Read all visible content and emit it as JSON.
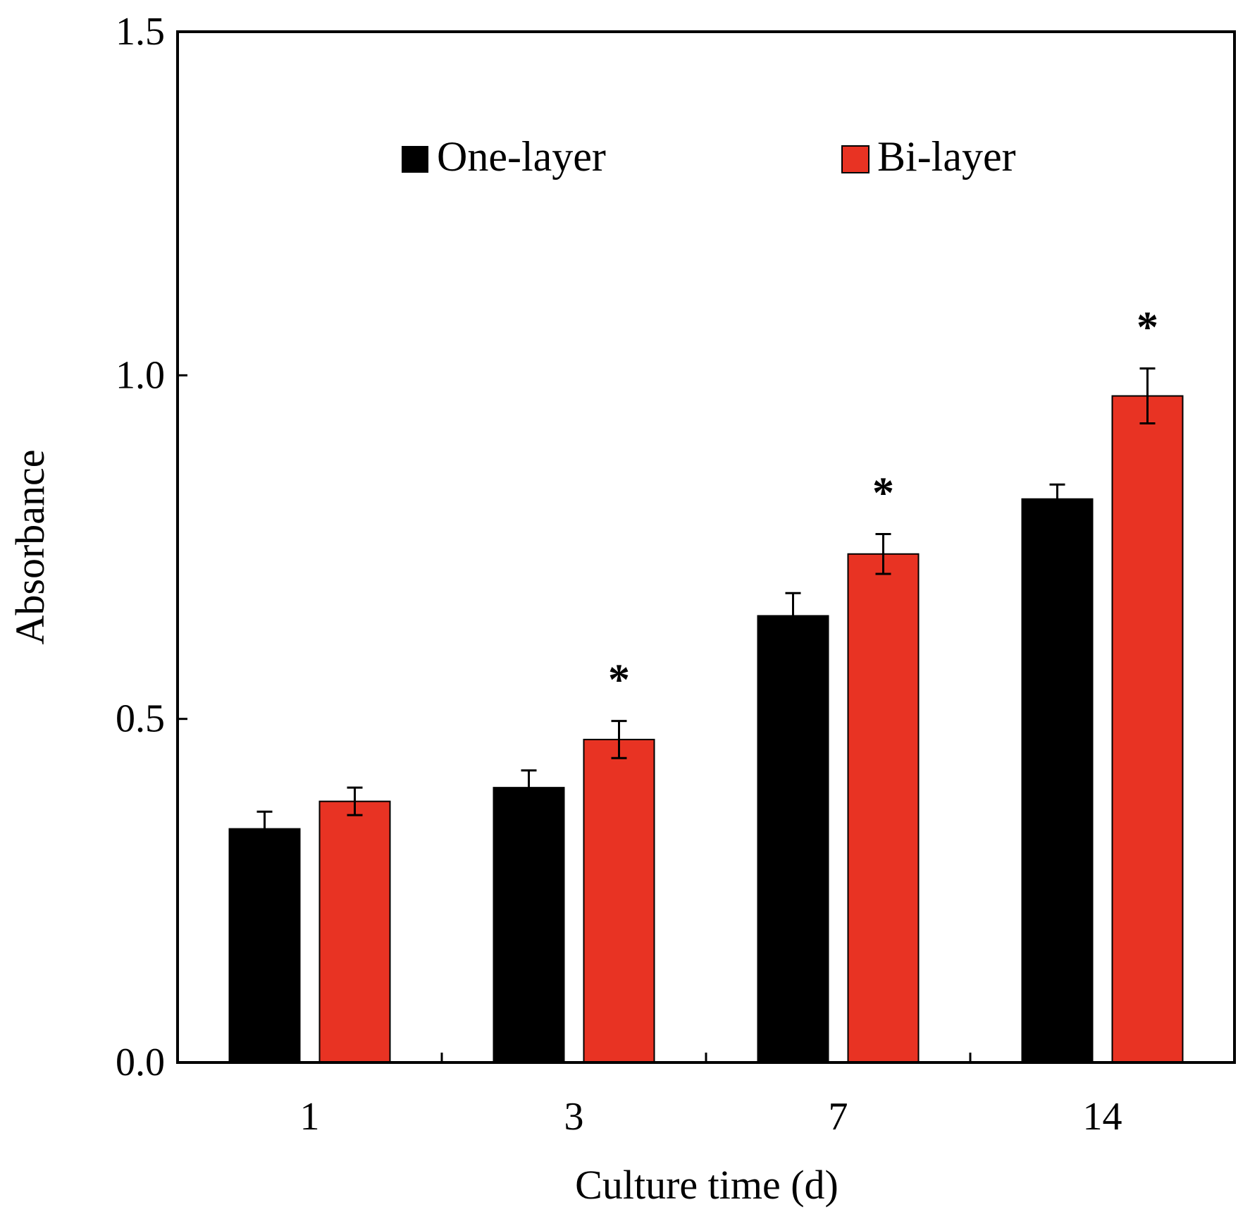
{
  "chart_data": {
    "type": "bar",
    "title": "",
    "xlabel": "Culture time (d)",
    "ylabel": "Absorbance",
    "categories": [
      "1",
      "3",
      "7",
      "14"
    ],
    "ylim": [
      0,
      1.5
    ],
    "yticks": [
      0.0,
      0.5,
      1.0,
      1.5
    ],
    "ytick_labels": [
      "0.0",
      "0.5",
      "1.0",
      "1.5"
    ],
    "grid": false,
    "legend_position": "top",
    "series": [
      {
        "name": "One-layer",
        "color": "#000000",
        "values": [
          0.34,
          0.4,
          0.65,
          0.82
        ],
        "errors": [
          0.025,
          0.025,
          0.033,
          0.021
        ]
      },
      {
        "name": "Bi-layer",
        "color": "#e83323",
        "values": [
          0.38,
          0.47,
          0.74,
          0.97
        ],
        "errors": [
          0.02,
          0.027,
          0.029,
          0.04
        ]
      }
    ],
    "significance": [
      {
        "category": "3",
        "series": "Bi-layer",
        "label": "*"
      },
      {
        "category": "7",
        "series": "Bi-layer",
        "label": "*"
      },
      {
        "category": "14",
        "series": "Bi-layer",
        "label": "*"
      }
    ]
  }
}
